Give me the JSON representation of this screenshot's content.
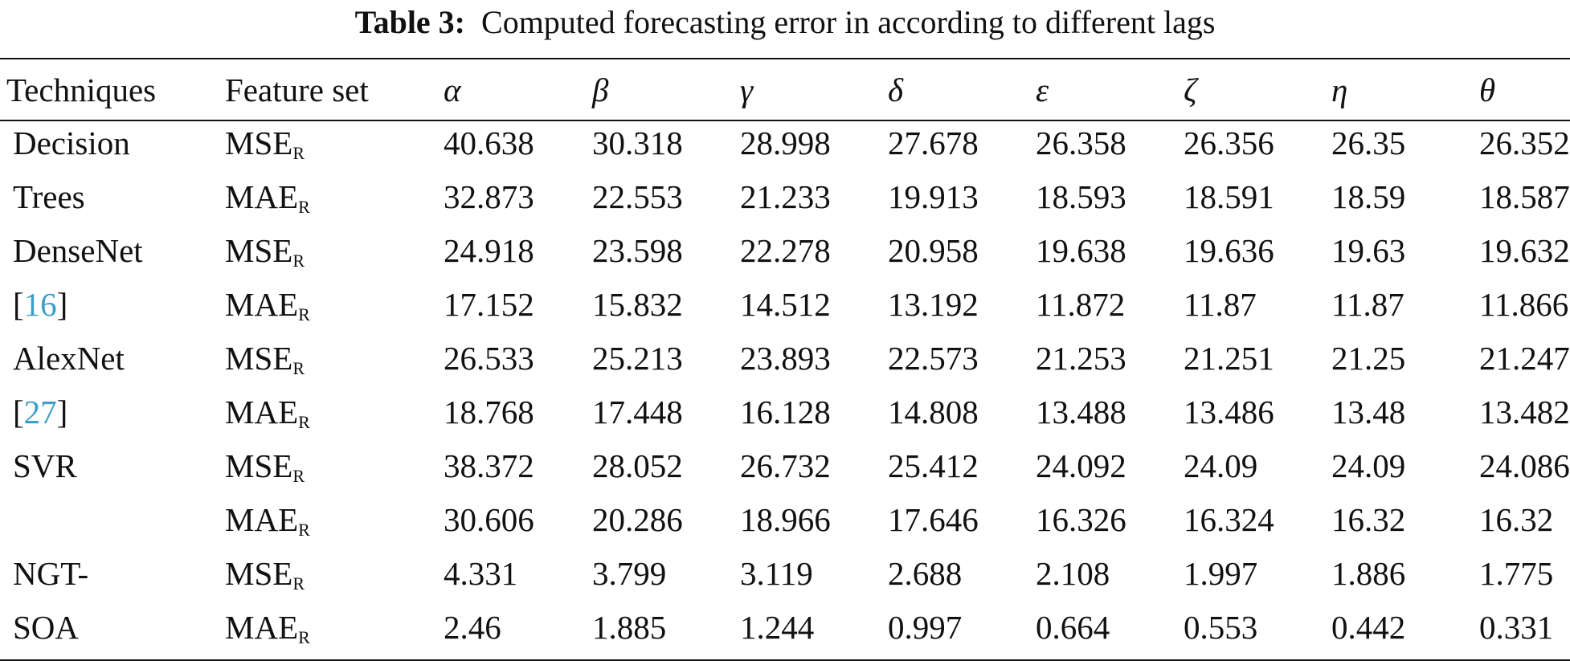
{
  "caption": {
    "label": "Table 3:",
    "text": "Computed forecasting error in according to different lags"
  },
  "headers": [
    "Techniques",
    "Feature set",
    "α",
    "β",
    "γ",
    "δ",
    "ε",
    "ζ",
    "η",
    "θ"
  ],
  "groups": [
    {
      "technique_line1": "Decision",
      "technique_line2": "Trees",
      "ref": "",
      "rows": [
        {
          "metric": "MSE",
          "sub": "R",
          "values": [
            "40.638",
            "30.318",
            "28.998",
            "27.678",
            "26.358",
            "26.356",
            "26.35",
            "26.352"
          ]
        },
        {
          "metric": "MAE",
          "sub": "R",
          "values": [
            "32.873",
            "22.553",
            "21.233",
            "19.913",
            "18.593",
            "18.591",
            "18.59",
            "18.587"
          ]
        }
      ]
    },
    {
      "technique_line1": "DenseNet",
      "technique_line2": "",
      "ref": "16",
      "rows": [
        {
          "metric": "MSE",
          "sub": "R",
          "values": [
            "24.918",
            "23.598",
            "22.278",
            "20.958",
            "19.638",
            "19.636",
            "19.63",
            "19.632"
          ]
        },
        {
          "metric": "MAE",
          "sub": "R",
          "values": [
            "17.152",
            "15.832",
            "14.512",
            "13.192",
            "11.872",
            "11.87",
            "11.87",
            "11.866"
          ]
        }
      ]
    },
    {
      "technique_line1": "AlexNet",
      "technique_line2": "",
      "ref": "27",
      "rows": [
        {
          "metric": "MSE",
          "sub": "R",
          "values": [
            "26.533",
            "25.213",
            "23.893",
            "22.573",
            "21.253",
            "21.251",
            "21.25",
            "21.247"
          ]
        },
        {
          "metric": "MAE",
          "sub": "R",
          "values": [
            "18.768",
            "17.448",
            "16.128",
            "14.808",
            "13.488",
            "13.486",
            "13.48",
            "13.482"
          ]
        }
      ]
    },
    {
      "technique_line1": "SVR",
      "technique_line2": "",
      "ref": "",
      "rows": [
        {
          "metric": "MSE",
          "sub": "R",
          "values": [
            "38.372",
            "28.052",
            "26.732",
            "25.412",
            "24.092",
            "24.09",
            "24.09",
            "24.086"
          ]
        },
        {
          "metric": "MAE",
          "sub": "R",
          "values": [
            "30.606",
            "20.286",
            "18.966",
            "17.646",
            "16.326",
            "16.324",
            "16.32",
            "16.32"
          ]
        }
      ]
    },
    {
      "technique_line1": "NGT-",
      "technique_line2": "SOA",
      "ref": "",
      "rows": [
        {
          "metric": "MSE",
          "sub": "R",
          "values": [
            "4.331",
            "3.799",
            "3.119",
            "2.688",
            "2.108",
            "1.997",
            "1.886",
            "1.775"
          ]
        },
        {
          "metric": "MAE",
          "sub": "R",
          "values": [
            "2.46",
            "1.885",
            "1.244",
            "0.997",
            "0.664",
            "0.553",
            "0.442",
            "0.331"
          ]
        }
      ]
    }
  ]
}
